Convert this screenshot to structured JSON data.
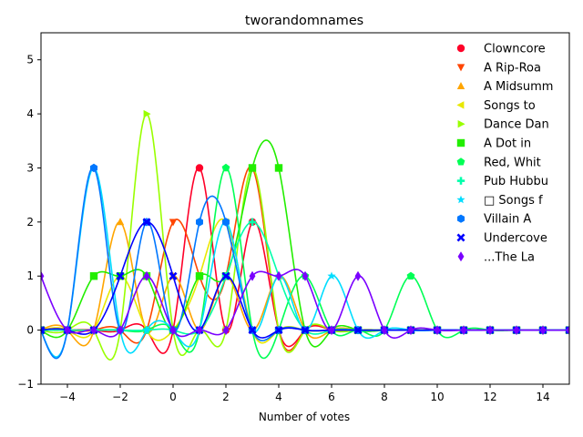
{
  "chart_data": {
    "type": "line",
    "title": "tworandomnames",
    "xlabel": "Number of votes",
    "ylabel": "",
    "xlim": [
      -5,
      15
    ],
    "ylim": [
      -1,
      5.5
    ],
    "xticks": [
      -4,
      -2,
      0,
      2,
      4,
      6,
      8,
      10,
      12,
      14
    ],
    "yticks": [
      -1,
      0,
      1,
      2,
      3,
      4,
      5
    ],
    "x": [
      -5,
      -4,
      -3,
      -2,
      -1,
      0,
      1,
      2,
      3,
      4,
      5,
      6,
      7,
      8,
      9,
      10,
      11,
      12,
      13,
      14,
      15
    ],
    "grid": false,
    "legend_position": "upper right",
    "series": [
      {
        "name": "Clowncore",
        "color": "#ff0029",
        "marker": "circle",
        "values": [
          0,
          0,
          0,
          0,
          0,
          0,
          3,
          0,
          2,
          0,
          0,
          0,
          0,
          0,
          0,
          0,
          0,
          0,
          0,
          0,
          0
        ]
      },
      {
        "name": "A Rip-Roa",
        "color": "#ff4500",
        "marker": "triangle-down",
        "values": [
          0,
          0,
          0,
          0,
          0,
          2,
          1,
          1,
          3,
          0,
          0,
          0,
          0,
          0,
          0,
          0,
          0,
          0,
          0,
          0,
          0
        ]
      },
      {
        "name": "A Midsumm",
        "color": "#ffa500",
        "marker": "triangle-up",
        "values": [
          0,
          0,
          0,
          2,
          0,
          1,
          0,
          1,
          0,
          1,
          0,
          0,
          0,
          0,
          0,
          0,
          0,
          0,
          0,
          0,
          0
        ]
      },
      {
        "name": "Songs to",
        "color": "#e8e800",
        "marker": "triangle-left",
        "values": [
          0,
          0,
          0,
          1,
          0,
          0,
          1,
          2,
          0,
          0,
          0,
          0,
          0,
          0,
          0,
          0,
          0,
          0,
          0,
          0,
          0
        ]
      },
      {
        "name": "Dance Dan",
        "color": "#99ff00",
        "marker": "triangle-right",
        "values": [
          0,
          0,
          0,
          0,
          4,
          0,
          0,
          0,
          3,
          0,
          0,
          0,
          0,
          0,
          0,
          0,
          0,
          0,
          0,
          0,
          0
        ]
      },
      {
        "name": "A Dot in",
        "color": "#22ee00",
        "marker": "square",
        "values": [
          0,
          0,
          1,
          1,
          1,
          0,
          1,
          1,
          3,
          3,
          0,
          0,
          0,
          0,
          0,
          0,
          0,
          0,
          0,
          0,
          0
        ]
      },
      {
        "name": "Red, Whit",
        "color": "#00ff55",
        "marker": "pentagon",
        "values": [
          0,
          0,
          0,
          0,
          0,
          0,
          0,
          3,
          0,
          0,
          1,
          0,
          0,
          0,
          1,
          0,
          0,
          0,
          0,
          0,
          0
        ]
      },
      {
        "name": "Pub Hubbu",
        "color": "#00ffaa",
        "marker": "plus",
        "values": [
          0,
          0,
          0,
          0,
          0,
          0,
          0,
          1,
          2,
          1,
          0,
          0,
          0,
          0,
          0,
          0,
          0,
          0,
          0,
          0,
          0
        ]
      },
      {
        "name": "□ Songs f",
        "color": "#00ddff",
        "marker": "star",
        "values": [
          0,
          0,
          3,
          0,
          0,
          0,
          0,
          2,
          0,
          1,
          0,
          1,
          0,
          0,
          0,
          0,
          0,
          0,
          0,
          0,
          0
        ]
      },
      {
        "name": "Villain A",
        "color": "#0077ff",
        "marker": "hexagon",
        "values": [
          0,
          0,
          3,
          0,
          2,
          0,
          2,
          2,
          0,
          0,
          0,
          0,
          0,
          0,
          0,
          0,
          0,
          0,
          0,
          0,
          0
        ]
      },
      {
        "name": "Undercove",
        "color": "#0000ff",
        "marker": "x",
        "values": [
          0,
          0,
          0,
          1,
          2,
          1,
          0,
          1,
          0,
          0,
          0,
          0,
          0,
          0,
          0,
          0,
          0,
          0,
          0,
          0,
          0
        ]
      },
      {
        "name": "...The La",
        "color": "#7a00ff",
        "marker": "diamond",
        "values": [
          1,
          0,
          0,
          0,
          1,
          0,
          0,
          0,
          1,
          1,
          1,
          0,
          1,
          0,
          0,
          0,
          0,
          0,
          0,
          0,
          0
        ]
      }
    ]
  }
}
